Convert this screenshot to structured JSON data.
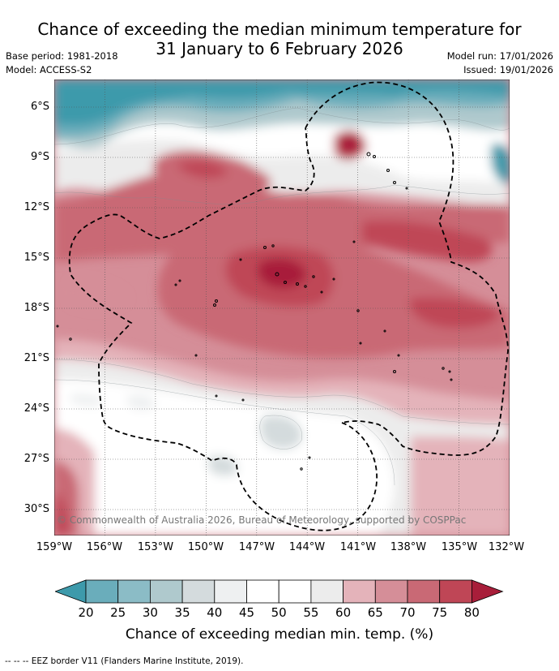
{
  "header": {
    "title_line1": "Chance of exceeding the median minimum temperature for",
    "title_line2": "31 January to 6 February 2026",
    "base_period": "Base period: 1981-2018",
    "model": "Model: ACCESS-S2",
    "model_run": "Model run: 17/01/2026",
    "issued": "Issued: 19/01/2026"
  },
  "map": {
    "lat_labels": [
      "6°S",
      "9°S",
      "12°S",
      "15°S",
      "18°S",
      "21°S",
      "24°S",
      "27°S",
      "30°S"
    ],
    "lon_labels": [
      "159°W",
      "156°W",
      "153°W",
      "150°W",
      "147°W",
      "144°W",
      "141°W",
      "138°W",
      "135°W",
      "132°W"
    ],
    "copyright": "© Commonwealth of Australia 2026, Bureau of Meteorology, supported by COSPPac"
  },
  "colorbar": {
    "ticks": [
      "20",
      "25",
      "30",
      "35",
      "40",
      "45",
      "50",
      "55",
      "60",
      "65",
      "70",
      "75",
      "80"
    ],
    "colors": [
      "#3d9aab",
      "#6aadbb",
      "#8bbcc6",
      "#afc9cd",
      "#d4dbdd",
      "#eef0f1",
      "#ffffff",
      "#ffffff",
      "#ececec",
      "#e4b3ba",
      "#d58e98",
      "#c96975",
      "#bf4656",
      "#a81e3a"
    ],
    "label": "Chance of exceeding median min. temp. (%)"
  },
  "footnote": "--  --  -- EEZ border V11 (Flanders Marine Institute, 2019)."
}
